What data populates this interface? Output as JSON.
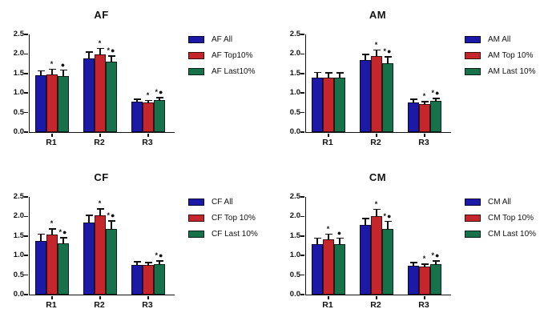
{
  "figure": {
    "background": "#ffffff",
    "axis_color": "#111111"
  },
  "colors": {
    "all": "#1c19a6",
    "top": "#c5262c",
    "last": "#17714b"
  },
  "chart_data": [
    {
      "type": "bar",
      "title": "AF",
      "categories": [
        "R1",
        "R2",
        "R3"
      ],
      "ylim": [
        0,
        2.5
      ],
      "yticks": [
        0.0,
        0.5,
        1.0,
        1.5,
        2.0,
        2.5
      ],
      "grid": false,
      "legend_position": "right",
      "series": [
        {
          "name": "AF All",
          "color": "#1c19a6",
          "values": [
            1.45,
            1.89,
            0.77
          ],
          "errors": [
            0.1,
            0.14,
            0.05
          ],
          "annotations": [
            "",
            "",
            ""
          ]
        },
        {
          "name": "AF Top10%",
          "color": "#c5262c",
          "values": [
            1.47,
            1.98,
            0.75
          ],
          "errors": [
            0.12,
            0.15,
            0.04
          ],
          "annotations": [
            "*",
            "*",
            "*"
          ]
        },
        {
          "name": "AF Last10%",
          "color": "#17714b",
          "values": [
            1.44,
            1.8,
            0.81
          ],
          "errors": [
            0.13,
            0.13,
            0.06
          ],
          "annotations": [
            "●",
            "*●",
            "*●"
          ]
        }
      ]
    },
    {
      "type": "bar",
      "title": "AM",
      "categories": [
        "R1",
        "R2",
        "R3"
      ],
      "ylim": [
        0,
        2.5
      ],
      "yticks": [
        0.0,
        0.5,
        1.0,
        1.5,
        2.0,
        2.5
      ],
      "grid": false,
      "legend_position": "right",
      "series": [
        {
          "name": "AM All",
          "color": "#1c19a6",
          "values": [
            1.4,
            1.84,
            0.76
          ],
          "errors": [
            0.11,
            0.13,
            0.06
          ],
          "annotations": [
            "",
            "",
            ""
          ]
        },
        {
          "name": "AM Top 10%",
          "color": "#c5262c",
          "values": [
            1.4,
            1.95,
            0.71
          ],
          "errors": [
            0.1,
            0.14,
            0.05
          ],
          "annotations": [
            "",
            "*",
            "*"
          ]
        },
        {
          "name": "AM Last 10%",
          "color": "#17714b",
          "values": [
            1.39,
            1.76,
            0.8
          ],
          "errors": [
            0.11,
            0.15,
            0.05
          ],
          "annotations": [
            "",
            "*●",
            "*●"
          ]
        }
      ]
    },
    {
      "type": "bar",
      "title": "CF",
      "categories": [
        "R1",
        "R2",
        "R3"
      ],
      "ylim": [
        0,
        2.5
      ],
      "yticks": [
        0.0,
        0.5,
        1.0,
        1.5,
        2.0,
        2.5
      ],
      "grid": false,
      "legend_position": "right",
      "series": [
        {
          "name": "CF All",
          "color": "#1c19a6",
          "values": [
            1.38,
            1.84,
            0.76
          ],
          "errors": [
            0.15,
            0.17,
            0.06
          ],
          "annotations": [
            "",
            "",
            ""
          ]
        },
        {
          "name": "CF Top 10%",
          "color": "#c5262c",
          "values": [
            1.54,
            2.03,
            0.75
          ],
          "errors": [
            0.13,
            0.15,
            0.05
          ],
          "annotations": [
            "*",
            "*",
            ""
          ]
        },
        {
          "name": "CF Last 10%",
          "color": "#17714b",
          "values": [
            1.32,
            1.69,
            0.78
          ],
          "errors": [
            0.12,
            0.18,
            0.07
          ],
          "annotations": [
            "*●",
            "*●",
            "*●"
          ]
        }
      ]
    },
    {
      "type": "bar",
      "title": "CM",
      "categories": [
        "R1",
        "R2",
        "R3"
      ],
      "ylim": [
        0,
        2.5
      ],
      "yticks": [
        0.0,
        0.5,
        1.0,
        1.5,
        2.0,
        2.5
      ],
      "grid": false,
      "legend_position": "right",
      "series": [
        {
          "name": "CM All",
          "color": "#1c19a6",
          "values": [
            1.3,
            1.78,
            0.74
          ],
          "errors": [
            0.13,
            0.15,
            0.06
          ],
          "annotations": [
            "",
            "",
            ""
          ]
        },
        {
          "name": "CM Top 10%",
          "color": "#c5262c",
          "values": [
            1.41,
            2.0,
            0.71
          ],
          "errors": [
            0.12,
            0.17,
            0.05
          ],
          "annotations": [
            "*",
            "*",
            "*"
          ]
        },
        {
          "name": "CM Last 10%",
          "color": "#17714b",
          "values": [
            1.3,
            1.69,
            0.78
          ],
          "errors": [
            0.13,
            0.17,
            0.07
          ],
          "annotations": [
            "●",
            "*●",
            "*●"
          ]
        }
      ]
    }
  ]
}
